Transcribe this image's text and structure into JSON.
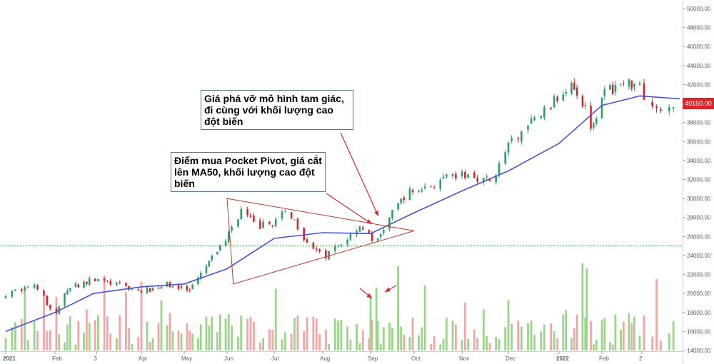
{
  "chart_data": {
    "type": "candlestick",
    "xaxis_ticks": [
      "2021",
      "Feb",
      "3",
      "Apr",
      "May",
      "Jun",
      "Jul",
      "Aug",
      "Sep",
      "Oct",
      "Nov",
      "Dec",
      "2022",
      "Feb",
      "2"
    ],
    "yaxis_ticks": [
      "50000.00",
      "48000.00",
      "46000.00",
      "44000.00",
      "42000.00",
      "40000.00",
      "38000.00",
      "36000.00",
      "34000.00",
      "32000.00",
      "30000.00",
      "28000.00",
      "26000.00",
      "24000.00",
      "22000.00",
      "20000.00",
      "18000.00",
      "16000.00",
      "14000.00"
    ],
    "yaxis_values": [
      50000,
      48000,
      46000,
      44000,
      42000,
      40000,
      38000,
      36000,
      34000,
      32000,
      30000,
      28000,
      26000,
      24000,
      22000,
      20000,
      18000,
      16000,
      14000
    ],
    "ylim": [
      13800,
      50600
    ],
    "last_price_label": "40150.00",
    "last_price": 40150,
    "support_line": 25000,
    "price_path": [
      {
        "date": "2021-01-01",
        "close": 20000
      },
      {
        "date": "2021-01-20",
        "close": 21000
      },
      {
        "date": "2021-02-01",
        "close": 17500
      },
      {
        "date": "2021-02-10",
        "close": 20500
      },
      {
        "date": "2021-03-01",
        "close": 21500
      },
      {
        "date": "2021-03-20",
        "close": 20800
      },
      {
        "date": "2021-04-01",
        "close": 20200
      },
      {
        "date": "2021-04-20",
        "close": 21000
      },
      {
        "date": "2021-05-05",
        "close": 20200
      },
      {
        "date": "2021-05-20",
        "close": 23500
      },
      {
        "date": "2021-06-01",
        "close": 26000
      },
      {
        "date": "2021-06-10",
        "close": 28800
      },
      {
        "date": "2021-06-20",
        "close": 27000
      },
      {
        "date": "2021-07-01",
        "close": 27500
      },
      {
        "date": "2021-07-10",
        "close": 28800
      },
      {
        "date": "2021-07-20",
        "close": 26000
      },
      {
        "date": "2021-08-01",
        "close": 23700
      },
      {
        "date": "2021-08-15",
        "close": 25500
      },
      {
        "date": "2021-08-25",
        "close": 27200
      },
      {
        "date": "2021-09-05",
        "close": 25200
      },
      {
        "date": "2021-09-12",
        "close": 27500
      },
      {
        "date": "2021-09-25",
        "close": 30500
      },
      {
        "date": "2021-10-15",
        "close": 31500
      },
      {
        "date": "2021-10-25",
        "close": 32300
      },
      {
        "date": "2021-11-05",
        "close": 32500
      },
      {
        "date": "2021-11-20",
        "close": 31800
      },
      {
        "date": "2021-12-01",
        "close": 35500
      },
      {
        "date": "2021-12-15",
        "close": 38000
      },
      {
        "date": "2021-12-31",
        "close": 40500
      },
      {
        "date": "2022-01-10",
        "close": 42500
      },
      {
        "date": "2022-01-20",
        "close": 39500
      },
      {
        "date": "2022-01-25",
        "close": 37500
      },
      {
        "date": "2022-02-01",
        "close": 41000
      },
      {
        "date": "2022-02-15",
        "close": 42000
      },
      {
        "date": "2022-03-01",
        "close": 42300
      },
      {
        "date": "2022-03-05",
        "close": 39500
      },
      {
        "date": "2022-03-20",
        "close": 40150
      }
    ],
    "ma50_path": [
      {
        "date": "2021-01-01",
        "value": 16000
      },
      {
        "date": "2021-02-01",
        "value": 18000
      },
      {
        "date": "2021-03-01",
        "value": 20000
      },
      {
        "date": "2021-04-01",
        "value": 20700
      },
      {
        "date": "2021-05-01",
        "value": 21000
      },
      {
        "date": "2021-06-01",
        "value": 22600
      },
      {
        "date": "2021-07-01",
        "value": 25800
      },
      {
        "date": "2021-08-01",
        "value": 26400
      },
      {
        "date": "2021-09-01",
        "value": 26300
      },
      {
        "date": "2021-10-01",
        "value": 28500
      },
      {
        "date": "2021-11-01",
        "value": 30800
      },
      {
        "date": "2021-12-01",
        "value": 32900
      },
      {
        "date": "2022-01-01",
        "value": 35800
      },
      {
        "date": "2022-02-01",
        "value": 39800
      },
      {
        "date": "2022-03-01",
        "value": 40800
      },
      {
        "date": "2022-03-20",
        "value": 40500
      }
    ],
    "triangle": [
      {
        "date": "2021-06-01",
        "price": 30000
      },
      {
        "date": "2021-10-01",
        "price": 26600
      },
      {
        "date": "2021-06-05",
        "price": 21000
      }
    ],
    "annotations": [
      "Giá phá vỡ mô hình tam giác, đi cùng với khối lượng cao đột biến",
      "Điểm mua Pocket Pivot, giá cắt lên MA50, khối lượng cao đột biến"
    ]
  },
  "annotations": {
    "note1": "Giá phá vỡ mô hình tam giác, đi cùng với khối lượng cao đột biến",
    "note2": "Điểm mua Pocket Pivot, giá cắt lên MA50, khối lượng cao đột biến"
  },
  "colors": {
    "up": "#26a69a",
    "up_candle": "#2e9e6a",
    "down": "#d9252b",
    "vol_up": "#9bd48a",
    "vol_down": "#f2a6a6",
    "ma50": "#4a52d6",
    "triangle": "#c0392b",
    "support": "#3a9a3a",
    "arrow": "#d9252b"
  }
}
